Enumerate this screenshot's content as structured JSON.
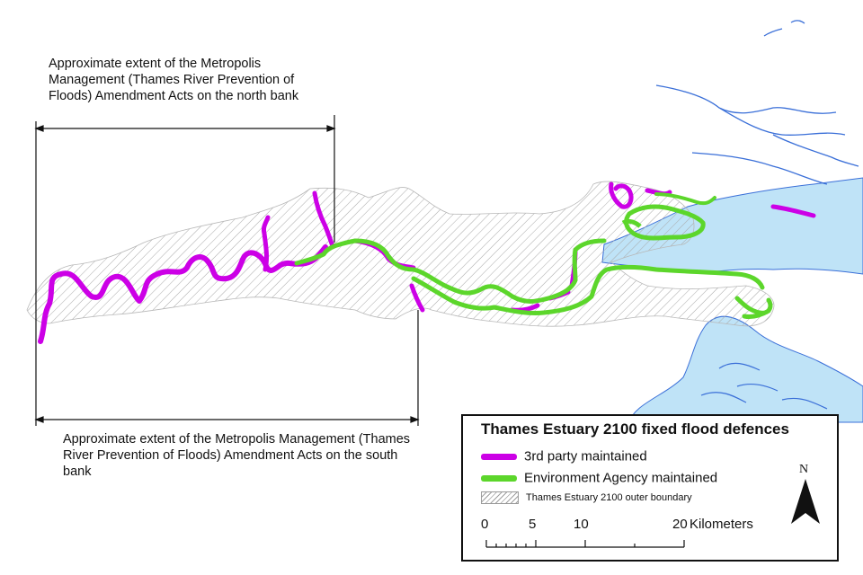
{
  "annotations": {
    "north_bank": "Approximate extent of the Metropolis Management (Thames River Prevention of Floods) Amendment Acts on the north bank",
    "south_bank": "Approximate extent of the Metropolis Management (Thames River Prevention of Floods) Amendment Acts on the south bank"
  },
  "legend": {
    "title": "Thames Estuary 2100 fixed flood defences",
    "items": [
      {
        "label": "3rd party maintained",
        "color": "#cc00e6",
        "symbol": "line"
      },
      {
        "label": "Environment Agency maintained",
        "color": "#5cd62b",
        "symbol": "line"
      },
      {
        "label": "Thames Estuary 2100 outer boundary",
        "color": "#a0a0a0",
        "symbol": "hatch"
      }
    ]
  },
  "scale_bar": {
    "ticks": [
      "0",
      "5",
      "10",
      "20"
    ],
    "unit": "Kilometers"
  },
  "north_arrow": {
    "label": "N",
    "icon": "north-arrow-icon"
  },
  "colors": {
    "water": "#bfe3f7",
    "water_outline": "#3a6fd8",
    "third_party": "#cc00e6",
    "environment_agency": "#5cd62b",
    "boundary_hatch": "#a0a0a0"
  }
}
